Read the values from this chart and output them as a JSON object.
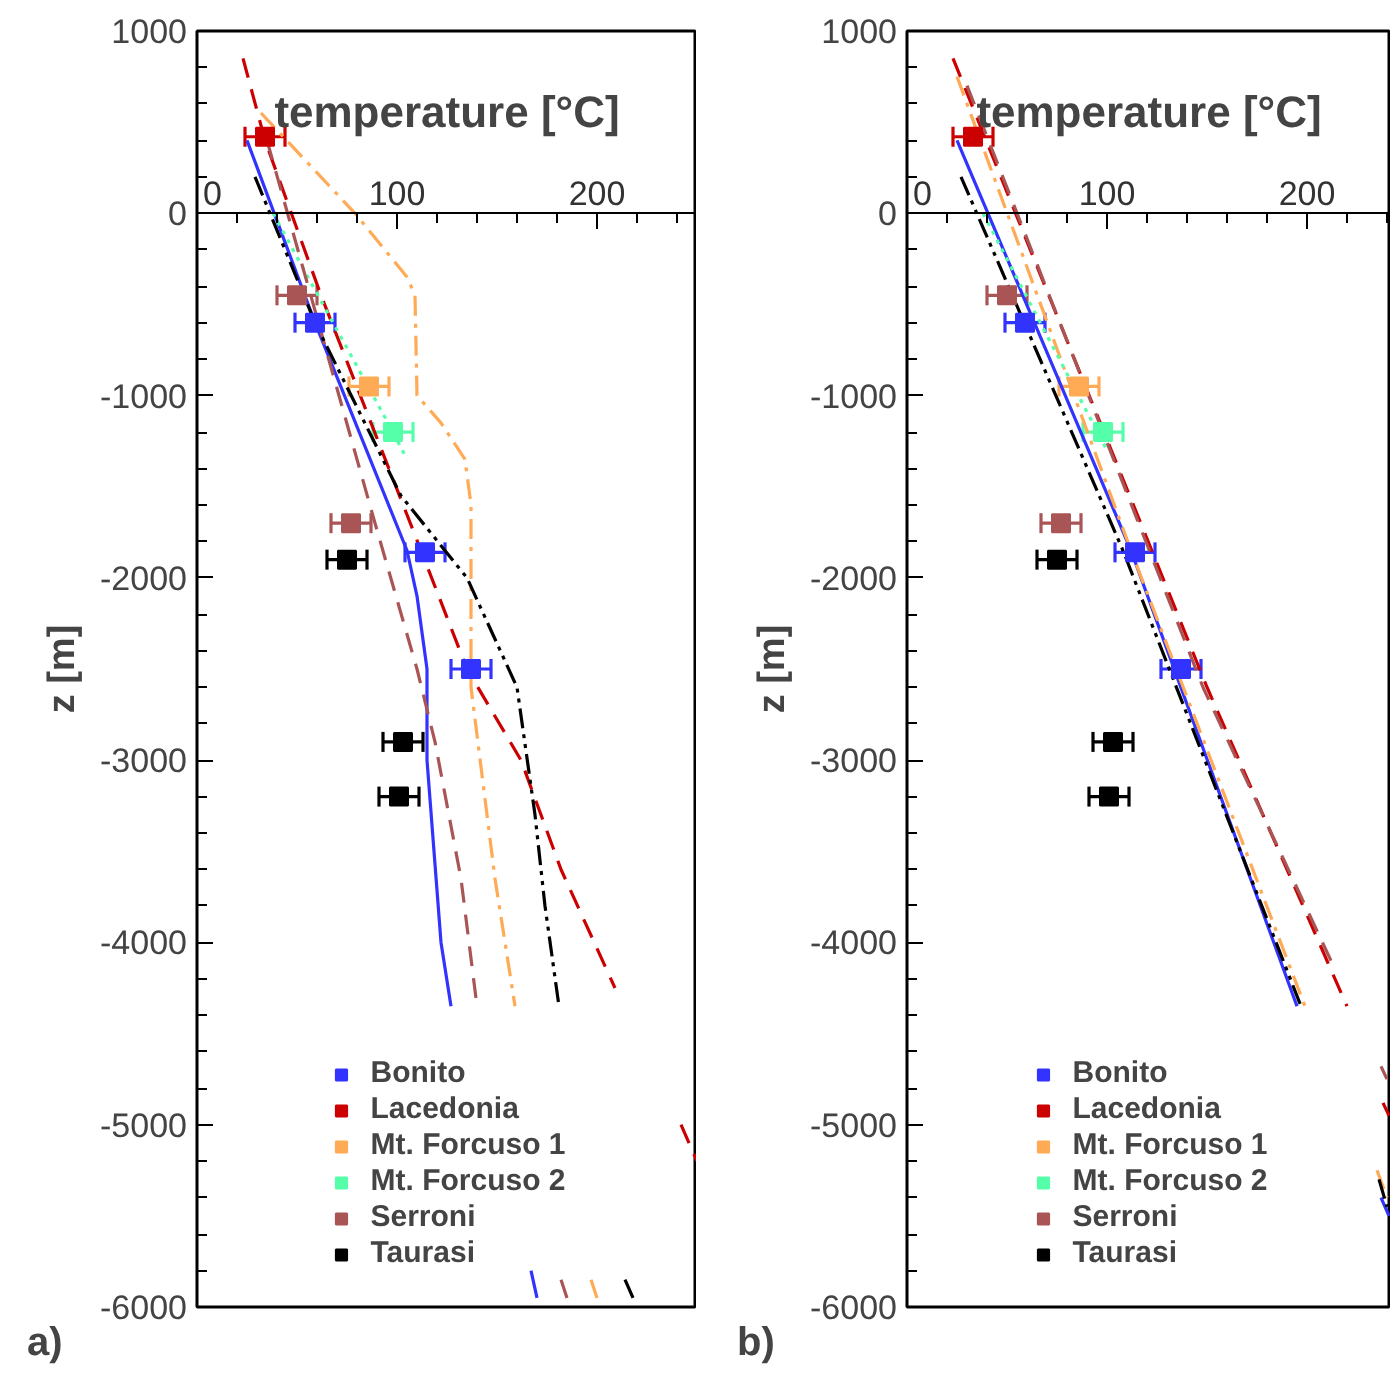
{
  "chart_data": [
    {
      "type": "scatter",
      "xlabel": "temperature [°C]",
      "ylabel": "z [m]",
      "xlim": [
        0,
        250
      ],
      "ylim": [
        -6000,
        1000
      ],
      "xticks": [
        0,
        100,
        200
      ],
      "yticks": [
        1000,
        0,
        -1000,
        -2000,
        -3000,
        -4000,
        -5000,
        -6000
      ],
      "legend": "bottom",
      "annotations": [
        "a)"
      ],
      "series": [
        {
          "type": "line",
          "color": "#3333ff",
          "line_style": "solid",
          "x": [
            25,
            59,
            105,
            110,
            115,
            115,
            122,
            127,
            null,
            167,
            170
          ],
          "values": [
            400,
            -600,
            -1850,
            -2100,
            -2500,
            -3000,
            -4000,
            -4350,
            null,
            -5800,
            -5950
          ]
        },
        {
          "type": "line",
          "color": "#cc0000",
          "line_style": "dashed",
          "x": [
            23,
            34,
            62,
            112,
            135,
            162,
            182,
            209,
            null,
            242,
            250
          ],
          "values": [
            850,
            400,
            -450,
            -1850,
            -2500,
            -3000,
            -3600,
            -4250,
            null,
            -5000,
            -5200
          ]
        },
        {
          "type": "line",
          "color": "#ffaa55",
          "line_style": "dashdot",
          "x": [
            32,
            79,
            105,
            109,
            110,
            122,
            134,
            137,
            137,
            149,
            159,
            null,
            197,
            200
          ],
          "values": [
            550,
            0,
            -350,
            -450,
            -1000,
            -1150,
            -1350,
            -1600,
            -2600,
            -3650,
            -4350,
            null,
            -5850,
            -5950
          ]
        },
        {
          "type": "line",
          "color": "#55ffaa",
          "line_style": "dotted",
          "x": [
            38,
            98,
            105
          ],
          "values": [
            0,
            -1200,
            -1350
          ]
        },
        {
          "type": "line",
          "color": "#aa5555",
          "line_style": "dashed",
          "x": [
            35,
            62,
            89,
            110,
            119,
            132,
            140,
            null,
            182,
            185
          ],
          "values": [
            400,
            -650,
            -1700,
            -2500,
            -2900,
            -3650,
            -4350,
            null,
            -5850,
            -5950
          ]
        },
        {
          "type": "line",
          "color": "#000000",
          "line_style": "dashdotdot",
          "x": [
            29,
            59,
            102,
            135,
            160,
            169,
            174,
            181,
            null,
            214,
            218
          ],
          "values": [
            200,
            -600,
            -1550,
            -2000,
            -2600,
            -3300,
            -3800,
            -4350,
            null,
            -5850,
            -5950
          ]
        },
        {
          "type": "scatter",
          "name": "Bonito",
          "color": "#3333ff",
          "marker": "square",
          "x": [
            59,
            114,
            137
          ],
          "values": [
            -600,
            -1860,
            -2500
          ],
          "xerrors": [
            10,
            10,
            10
          ]
        },
        {
          "type": "scatter",
          "name": "Lacedonia",
          "color": "#cc0000",
          "marker": "square",
          "x": [
            34
          ],
          "values": [
            420
          ],
          "xerrors": [
            10
          ]
        },
        {
          "type": "scatter",
          "name": "Mt. Forcuso 1",
          "color": "#ffaa55",
          "marker": "square",
          "x": [
            86
          ],
          "values": [
            -950
          ],
          "xerrors": [
            10
          ]
        },
        {
          "type": "scatter",
          "name": "Mt. Forcuso 2",
          "color": "#55ffaa",
          "marker": "square",
          "x": [
            98
          ],
          "values": [
            -1200
          ],
          "xerrors": [
            10
          ]
        },
        {
          "type": "scatter",
          "name": "Serroni",
          "color": "#aa5555",
          "marker": "square",
          "x": [
            50,
            77
          ],
          "values": [
            -450,
            -1700
          ],
          "xerrors": [
            10,
            10
          ]
        },
        {
          "type": "scatter",
          "name": "Taurasi",
          "color": "#000000",
          "marker": "square",
          "x": [
            75,
            103,
            101
          ],
          "values": [
            -1900,
            -2900,
            -3200
          ],
          "xerrors": [
            10,
            10,
            10
          ]
        }
      ]
    },
    {
      "type": "scatter",
      "xlabel": "temperature [°C]",
      "ylabel": "z [m]",
      "xlim": [
        0,
        242
      ],
      "ylim": [
        -6000,
        1000
      ],
      "xticks": [
        0,
        100,
        200
      ],
      "yticks": [
        1000,
        0,
        -1000,
        -2000,
        -3000,
        -4000,
        -5000,
        -6000
      ],
      "legend": "bottom",
      "annotations": [
        "b)"
      ],
      "series": [
        {
          "type": "line",
          "color": "#3333ff",
          "line_style": "solid",
          "x": [
            25,
            112,
            195,
            null,
            237,
            241
          ],
          "values": [
            400,
            -1850,
            -4350,
            null,
            -5400,
            -5500
          ]
        },
        {
          "type": "line",
          "color": "#cc0000",
          "line_style": "dashed",
          "x": [
            23,
            150,
            220,
            null,
            238,
            241
          ],
          "values": [
            850,
            -2600,
            -4350,
            null,
            -4880,
            -4950
          ]
        },
        {
          "type": "line",
          "color": "#ffaa55",
          "line_style": "dashdot",
          "x": [
            25,
            112,
            199,
            null,
            235,
            240
          ],
          "values": [
            750,
            -1850,
            -4350,
            null,
            -5250,
            -5400
          ]
        },
        {
          "type": "line",
          "color": "#55ffaa",
          "line_style": "dotted",
          "x": [
            38,
            100
          ],
          "values": [
            0,
            -1300
          ]
        },
        {
          "type": "line",
          "color": "#aa5555",
          "line_style": "dashed",
          "x": [
            30,
            148,
            212,
            null,
            237,
            240
          ],
          "values": [
            700,
            -2600,
            -4100,
            null,
            -4680,
            -4750
          ]
        },
        {
          "type": "line",
          "color": "#000000",
          "line_style": "dashdotdot",
          "x": [
            27,
            108,
            197,
            null,
            236,
            240
          ],
          "values": [
            200,
            -1850,
            -4350,
            null,
            -5300,
            -5450
          ]
        },
        {
          "type": "scatter",
          "name": "Bonito",
          "color": "#3333ff",
          "marker": "square",
          "x": [
            59,
            114,
            137
          ],
          "values": [
            -600,
            -1860,
            -2500
          ],
          "xerrors": [
            10,
            10,
            10
          ]
        },
        {
          "type": "scatter",
          "name": "Lacedonia",
          "color": "#cc0000",
          "marker": "square",
          "x": [
            33
          ],
          "values": [
            420
          ],
          "xerrors": [
            10
          ]
        },
        {
          "type": "scatter",
          "name": "Mt. Forcuso 1",
          "color": "#ffaa55",
          "marker": "square",
          "x": [
            86
          ],
          "values": [
            -950
          ],
          "xerrors": [
            10
          ]
        },
        {
          "type": "scatter",
          "name": "Mt. Forcuso 2",
          "color": "#55ffaa",
          "marker": "square",
          "x": [
            98
          ],
          "values": [
            -1200
          ],
          "xerrors": [
            10
          ]
        },
        {
          "type": "scatter",
          "name": "Serroni",
          "color": "#aa5555",
          "marker": "square",
          "x": [
            50,
            77
          ],
          "values": [
            -450,
            -1700
          ],
          "xerrors": [
            10,
            10
          ]
        },
        {
          "type": "scatter",
          "name": "Taurasi",
          "color": "#000000",
          "marker": "square",
          "x": [
            75,
            103,
            101
          ],
          "values": [
            -1900,
            -2900,
            -3200
          ],
          "xerrors": [
            10,
            10,
            10
          ]
        }
      ]
    }
  ]
}
